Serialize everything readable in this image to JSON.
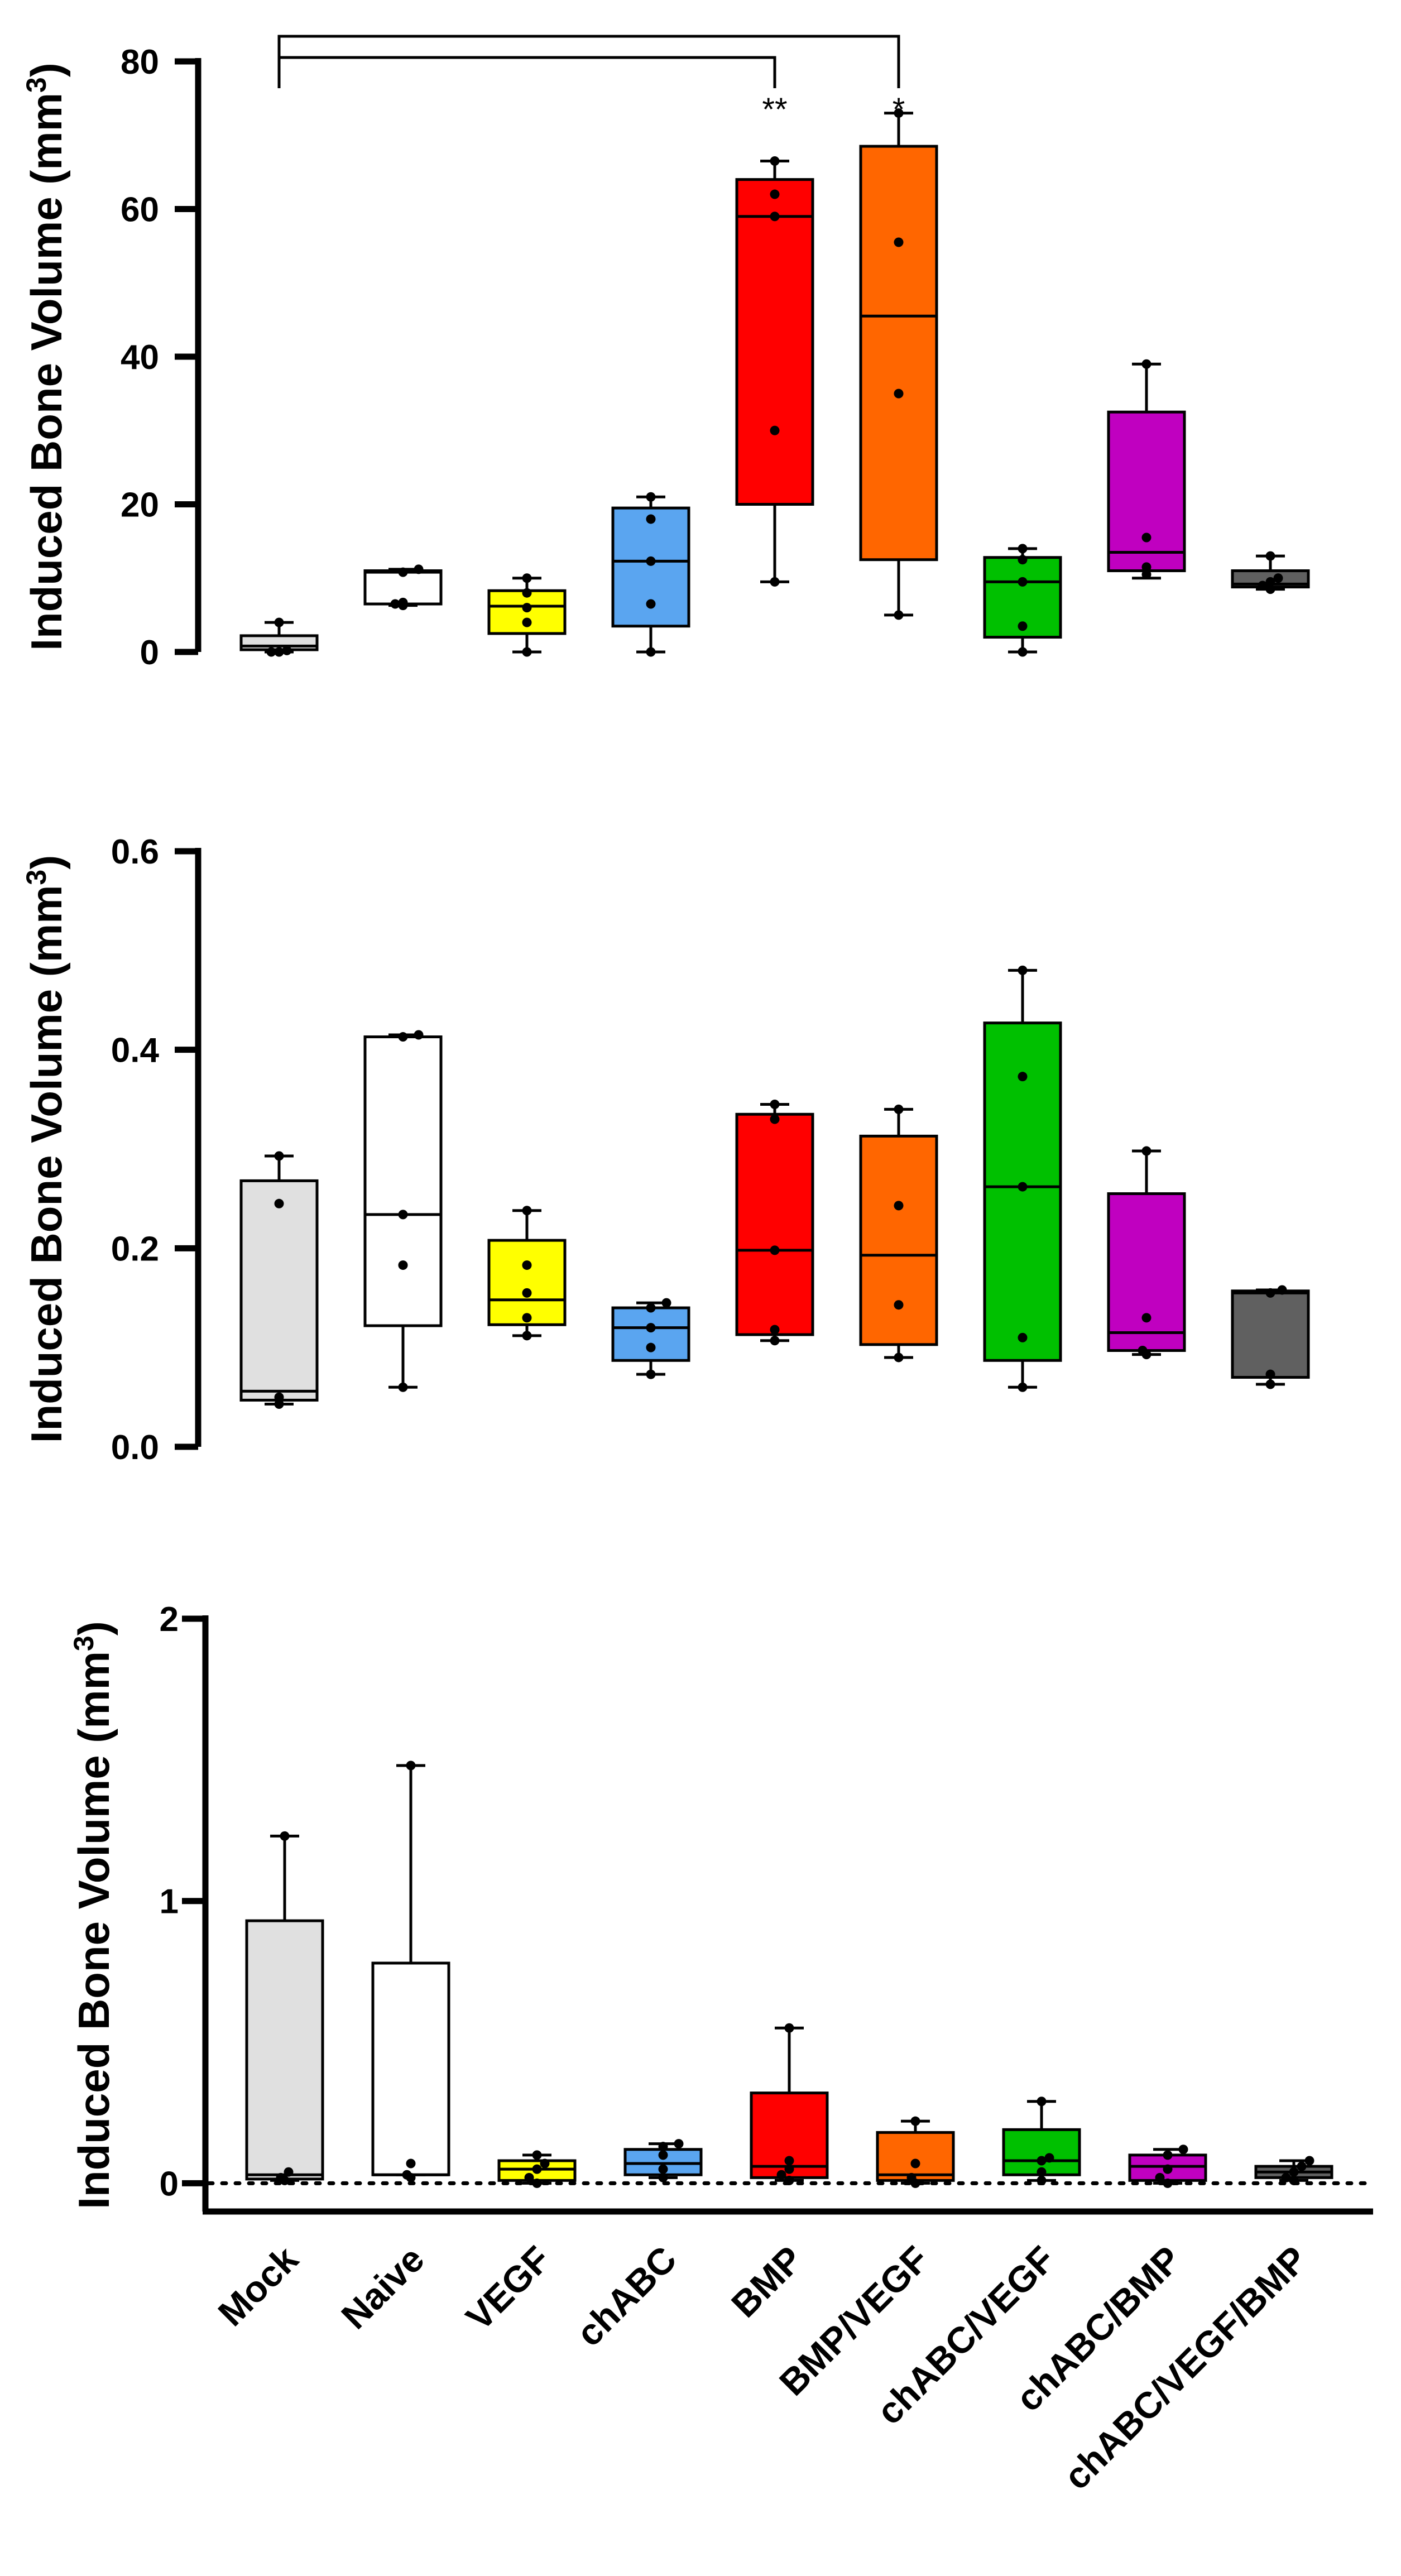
{
  "chart_data": [
    {
      "type": "box",
      "title": "",
      "ylabel": "Induced Bone Volume (mm³)",
      "ylabel_main": "Induced Bone Volume (mm",
      "ylabel_sup": "3",
      "ylabel_close": ")",
      "ylim": [
        0,
        80
      ],
      "yticks": [
        0,
        20,
        40,
        60,
        80
      ],
      "zero_line": false,
      "categories": [
        "Mock",
        "Naive",
        "VEGF",
        "chABC",
        "BMP",
        "BMP/VEGF",
        "chABC/VEGF",
        "chABC/BMP",
        "chABC/VEGF/BMP"
      ],
      "colors": [
        "#e0e0e0",
        "#ffffff",
        "#ffff00",
        "#5aa5f0",
        "#ff0000",
        "#ff6600",
        "#00c000",
        "#c000c0",
        "#606060"
      ],
      "boxes": [
        {
          "min": 0,
          "q1": 0.3,
          "median": 0.8,
          "q3": 2.2,
          "max": 4,
          "points": [
            0,
            0,
            0,
            0.2,
            4
          ]
        },
        {
          "min": 6.3,
          "q1": 6.5,
          "median": 10.8,
          "q3": 11,
          "max": 11.2,
          "points": [
            6.3,
            6.5,
            6.7,
            10.8,
            11.2
          ]
        },
        {
          "min": 0,
          "q1": 2.5,
          "median": 6.2,
          "q3": 8.3,
          "max": 10,
          "points": [
            0,
            4,
            6,
            8,
            10
          ]
        },
        {
          "min": 0,
          "q1": 3.5,
          "median": 12.3,
          "q3": 19.5,
          "max": 21,
          "points": [
            0,
            6.5,
            12.3,
            18,
            21
          ]
        },
        {
          "min": 9.5,
          "q1": 20,
          "median": 59,
          "q3": 64,
          "max": 66.5,
          "points": [
            9.5,
            30,
            59,
            62,
            66.5
          ]
        },
        {
          "min": 5,
          "q1": 12.5,
          "median": 45.5,
          "q3": 68.5,
          "max": 73,
          "points": [
            5,
            35,
            55.5,
            73
          ]
        },
        {
          "min": 0,
          "q1": 2,
          "median": 9.5,
          "q3": 12.8,
          "max": 14,
          "points": [
            0,
            3.5,
            9.5,
            12.5,
            14
          ]
        },
        {
          "min": 10,
          "q1": 11,
          "median": 13.5,
          "q3": 32.5,
          "max": 39,
          "points": [
            10.5,
            11.5,
            15.5,
            39
          ]
        },
        {
          "min": 8.5,
          "q1": 8.8,
          "median": 9.2,
          "q3": 11,
          "max": 13,
          "points": [
            8.5,
            9,
            9.5,
            10,
            13
          ]
        }
      ],
      "significance": [
        {
          "from": "Mock",
          "to": "BMP",
          "label": "**"
        },
        {
          "from": "Mock",
          "to": "BMP/VEGF",
          "label": "*"
        }
      ]
    },
    {
      "type": "box",
      "title": "",
      "ylabel": "Induced Bone Volume (mm³)",
      "ylabel_main": "Induced Bone Volume (mm",
      "ylabel_sup": "3",
      "ylabel_close": ")",
      "ylim": [
        0,
        0.6
      ],
      "yticks": [
        "0.0",
        "0.2",
        "0.4",
        "0.6"
      ],
      "zero_line": false,
      "categories": [
        "Mock",
        "Naive",
        "VEGF",
        "chABC",
        "BMP",
        "BMP/VEGF",
        "chABC/VEGF",
        "chABC/BMP",
        "chABC/VEGF/BMP"
      ],
      "colors": [
        "#e0e0e0",
        "#ffffff",
        "#ffff00",
        "#5aa5f0",
        "#ff0000",
        "#ff6600",
        "#00c000",
        "#c000c0",
        "#606060"
      ],
      "boxes": [
        {
          "min": 0.043,
          "q1": 0.047,
          "median": 0.056,
          "q3": 0.268,
          "max": 0.293,
          "points": [
            0.043,
            0.05,
            0.245,
            0.293
          ]
        },
        {
          "min": 0.06,
          "q1": 0.122,
          "median": 0.234,
          "q3": 0.413,
          "max": 0.415,
          "points": [
            0.06,
            0.183,
            0.234,
            0.413,
            0.415
          ]
        },
        {
          "min": 0.112,
          "q1": 0.123,
          "median": 0.148,
          "q3": 0.208,
          "max": 0.238,
          "points": [
            0.112,
            0.13,
            0.155,
            0.183,
            0.238
          ]
        },
        {
          "min": 0.073,
          "q1": 0.087,
          "median": 0.12,
          "q3": 0.14,
          "max": 0.145,
          "points": [
            0.073,
            0.1,
            0.12,
            0.14,
            0.145
          ]
        },
        {
          "min": 0.107,
          "q1": 0.113,
          "median": 0.198,
          "q3": 0.335,
          "max": 0.345,
          "points": [
            0.107,
            0.118,
            0.198,
            0.33,
            0.345
          ]
        },
        {
          "min": 0.09,
          "q1": 0.103,
          "median": 0.193,
          "q3": 0.313,
          "max": 0.34,
          "points": [
            0.09,
            0.143,
            0.243,
            0.34
          ]
        },
        {
          "min": 0.06,
          "q1": 0.087,
          "median": 0.262,
          "q3": 0.427,
          "max": 0.48,
          "points": [
            0.06,
            0.11,
            0.262,
            0.373,
            0.48
          ]
        },
        {
          "min": 0.093,
          "q1": 0.097,
          "median": 0.115,
          "q3": 0.255,
          "max": 0.298,
          "points": [
            0.093,
            0.097,
            0.13,
            0.298
          ]
        },
        {
          "min": 0.063,
          "q1": 0.07,
          "median": 0.155,
          "q3": 0.157,
          "max": 0.158,
          "points": [
            0.063,
            0.073,
            0.155,
            0.158
          ]
        }
      ],
      "significance": []
    },
    {
      "type": "box",
      "title": "",
      "ylabel": "Induced Bone Volume (mm³)",
      "ylabel_main": "Induced Bone Volume (mm",
      "ylabel_sup": "3",
      "ylabel_close": ")",
      "ylim": [
        -0.1,
        2
      ],
      "yticks": [
        0,
        1,
        2
      ],
      "zero_line": true,
      "categories": [
        "Mock",
        "Naive",
        "VEGF",
        "chABC",
        "BMP",
        "BMP/VEGF",
        "chABC/VEGF",
        "chABC/BMP",
        "chABC/VEGF/BMP"
      ],
      "colors": [
        "#e0e0e0",
        "#ffffff",
        "#ffff00",
        "#5aa5f0",
        "#ff0000",
        "#ff6600",
        "#00c000",
        "#c000c0",
        "#606060"
      ],
      "boxes": [
        {
          "min": 0.01,
          "q1": 0.015,
          "median": 0.03,
          "q3": 0.93,
          "max": 1.23,
          "points": [
            0.01,
            0.02,
            0.04,
            1.23
          ]
        },
        {
          "min": 0.03,
          "q1": 0.03,
          "median": 0.03,
          "q3": 0.78,
          "max": 1.48,
          "points": [
            0.02,
            0.03,
            0.07,
            1.48
          ]
        },
        {
          "min": 0,
          "q1": 0.01,
          "median": 0.05,
          "q3": 0.08,
          "max": 0.1,
          "points": [
            0,
            0.02,
            0.05,
            0.07,
            0.1
          ]
        },
        {
          "min": 0.02,
          "q1": 0.03,
          "median": 0.07,
          "q3": 0.12,
          "max": 0.14,
          "points": [
            0.02,
            0.05,
            0.1,
            0.13,
            0.14
          ]
        },
        {
          "min": 0.01,
          "q1": 0.02,
          "median": 0.06,
          "q3": 0.32,
          "max": 0.55,
          "points": [
            0.01,
            0.03,
            0.05,
            0.08,
            0.55
          ]
        },
        {
          "min": 0,
          "q1": 0.01,
          "median": 0.03,
          "q3": 0.18,
          "max": 0.22,
          "points": [
            0,
            0.02,
            0.07,
            0.22
          ]
        },
        {
          "min": 0.01,
          "q1": 0.03,
          "median": 0.08,
          "q3": 0.19,
          "max": 0.29,
          "points": [
            0.01,
            0.04,
            0.08,
            0.09,
            0.29
          ]
        },
        {
          "min": 0,
          "q1": 0.01,
          "median": 0.06,
          "q3": 0.1,
          "max": 0.12,
          "points": [
            0,
            0.02,
            0.05,
            0.1,
            0.12
          ]
        },
        {
          "min": 0.01,
          "q1": 0.02,
          "median": 0.04,
          "q3": 0.06,
          "max": 0.08,
          "points": [
            0.01,
            0.02,
            0.04,
            0.06,
            0.08
          ]
        }
      ],
      "significance": []
    }
  ]
}
